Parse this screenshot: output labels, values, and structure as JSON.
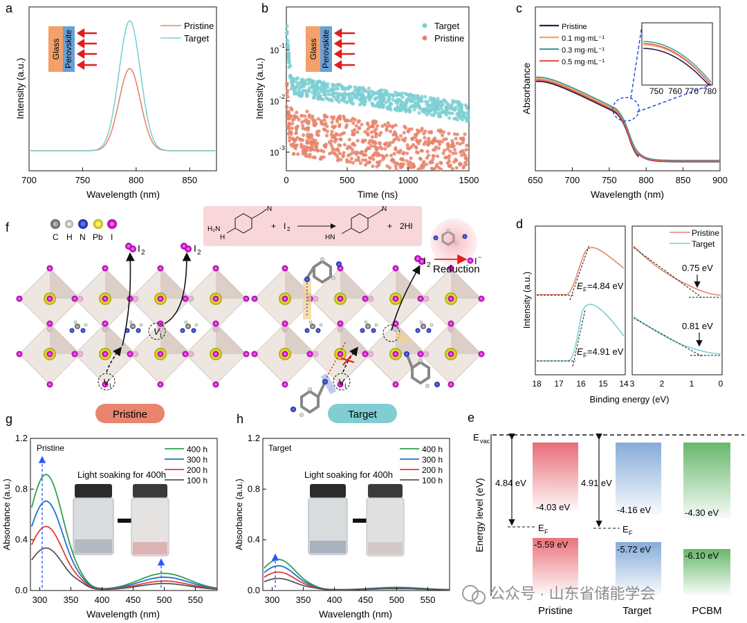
{
  "panels": {
    "a": {
      "letter": "a",
      "xlabel": "Wavelength (nm)",
      "ylabel": "Intensity (a.u.)",
      "xticks": [
        "700",
        "750",
        "800",
        "850"
      ],
      "legend": [
        "Pristine",
        "Target"
      ],
      "inset": {
        "glass": "Glass",
        "perovskite": "Perovskite"
      }
    },
    "b": {
      "letter": "b",
      "xlabel": "Time (ns)",
      "ylabel": "Intensity (a.u.)",
      "xticks": [
        "0",
        "500",
        "1000",
        "1500"
      ],
      "yticks": [
        "10",
        "10",
        "10"
      ],
      "yexp": [
        "-1",
        "-2",
        "-3"
      ],
      "legend": [
        "Target",
        "Pristine"
      ],
      "inset": {
        "glass": "Glass",
        "perovskite": "Perovskite"
      }
    },
    "c": {
      "letter": "c",
      "xlabel": "Wavelength (nm)",
      "ylabel": "Absorbance",
      "xticks": [
        "650",
        "700",
        "750",
        "800",
        "850",
        "900"
      ],
      "legend": [
        "Pristine",
        "0.1 mg·mL⁻¹",
        "0.3 mg·mL⁻¹",
        "0.5 mg·mL⁻¹"
      ],
      "inset_xticks": [
        "750",
        "760",
        "770",
        "780"
      ]
    },
    "d": {
      "letter": "d",
      "ylabel": "Intensity (a.u.)",
      "xlabel": "Binding energy (eV)",
      "xticks_left": [
        "18",
        "17",
        "16",
        "15",
        "14"
      ],
      "xticks_right": [
        "3",
        "2",
        "1",
        "0"
      ],
      "legend": [
        "Pristine",
        "Target"
      ],
      "ef_pristine": "=4.84 eV",
      "ef_target": "=4.91 eV",
      "ef_symbol": "E",
      "ef_sub": "F",
      "vbm_pristine": "0.75 eV",
      "vbm_target": "0.81 eV"
    },
    "e": {
      "letter": "e",
      "ylabel": "Energy level (eV)",
      "evac": "E",
      "evac_sub": "vac",
      "wf_pristine": "4.84 eV",
      "wf_target": "4.91 eV",
      "ef_label": "E",
      "ef_sub": "F",
      "columns": [
        {
          "name": "Pristine",
          "cb": "-4.03 eV",
          "vb": "-5.59 eV",
          "color": "#e8646f"
        },
        {
          "name": "Target",
          "cb": "-4.16 eV",
          "vb": "-5.72 eV",
          "color": "#7fa7d6"
        },
        {
          "name": "PCBM",
          "cb": "-4.30 eV",
          "vb": "-6.10 eV",
          "color": "#5fb463"
        }
      ]
    },
    "f": {
      "letter": "f",
      "atom_labels": [
        "C",
        "H",
        "N",
        "Pb",
        "I"
      ],
      "atom_colors": [
        "#8a8a8a",
        "#dcdcdc",
        "#2233cc",
        "#e6e02a",
        "#d81fd6"
      ],
      "i2": "I",
      "i2_sub": "2",
      "iminus": "I",
      "iminus_sup": "−",
      "reduction": "Reduction",
      "vacancy": "V",
      "vacancy_sub": "I",
      "reaction": {
        "plus1": "+",
        "i2": "I",
        "i2_sub": "2",
        "plus2": "+",
        "hi": "2HI",
        "nh_top": "H",
        "nh_n": "N",
        "cn_n": "N",
        "diazo": "N",
        "h2n": "H₂N",
        "nnh": "HN"
      },
      "pill_pristine": "Pristine",
      "pill_target": "Target"
    },
    "g": {
      "letter": "g",
      "tag": "Pristine",
      "xlabel": "Wavelength (nm)",
      "ylabel": "Absorbance (a.u.)",
      "xticks": [
        "300",
        "350",
        "400",
        "450",
        "500",
        "550"
      ],
      "yticks": [
        "0.0",
        "0.4",
        "0.8",
        "1.2"
      ],
      "legend": [
        "400 h",
        "300 h",
        "200 h",
        "100 h"
      ],
      "photo_caption": "Light soaking for 400h"
    },
    "h": {
      "letter": "h",
      "tag": "Target",
      "xlabel": "Wavelength (nm)",
      "ylabel": "Absorbance (a.u.)",
      "xticks": [
        "300",
        "350",
        "400",
        "450",
        "500",
        "550"
      ],
      "yticks": [
        "0.0",
        "0.4",
        "0.8",
        "1.2"
      ],
      "legend": [
        "400 h",
        "300 h",
        "200 h",
        "100 h"
      ],
      "photo_caption": "Light soaking for 400h"
    }
  },
  "watermark": "公众号 · 山东省储能学会",
  "colors": {
    "pristine": "#e8836a",
    "target": "#7ccfd2",
    "c_pristine": "#2b1a4a",
    "c01": "#f2a65a",
    "c03": "#3f9f9a",
    "c05": "#e8564a",
    "h400": "#2e9e4f",
    "h300": "#1f6fd1",
    "h200": "#e23b32",
    "h100": "#555555"
  },
  "chart_data": [
    {
      "type": "line",
      "title": "",
      "xlabel": "Wavelength (nm)",
      "ylabel": "Intensity (a.u.)",
      "xlim": [
        700,
        875
      ],
      "ylim": [
        0,
        1.05
      ],
      "series": [
        {
          "name": "Pristine",
          "peak": 794,
          "sigma": 10,
          "height": 0.6
        },
        {
          "name": "Target",
          "peak": 794,
          "sigma": 10,
          "height": 0.95
        }
      ]
    },
    {
      "type": "scatter",
      "xlabel": "Time (ns)",
      "ylabel": "Intensity (a.u.)",
      "xlim": [
        0,
        1500
      ],
      "ylim_log": [
        0.0004,
        0.4
      ],
      "series": [
        {
          "name": "Target",
          "start": 0.3,
          "plateau": 0.02,
          "end": 0.006
        },
        {
          "name": "Pristine",
          "start": 0.01,
          "plateau": 0.0025,
          "end": 0.0008
        }
      ]
    },
    {
      "type": "line",
      "xlabel": "Wavelength (nm)",
      "ylabel": "Absorbance",
      "xlim": [
        650,
        900
      ],
      "edge_nm": 770,
      "series": [
        {
          "name": "Pristine"
        },
        {
          "name": "0.1 mg·mL⁻¹"
        },
        {
          "name": "0.3 mg·mL⁻¹"
        },
        {
          "name": "0.5 mg·mL⁻¹"
        }
      ]
    },
    {
      "type": "line",
      "xlabel": "Wavelength (nm)",
      "ylabel": "Absorbance (a.u.)",
      "xlim": [
        285,
        585
      ],
      "ylim": [
        0,
        1.2
      ],
      "title": "Pristine",
      "series": [
        {
          "name": "400 h",
          "p310": 0.91,
          "p500": 0.13
        },
        {
          "name": "300 h",
          "p310": 0.7,
          "p500": 0.1
        },
        {
          "name": "200 h",
          "p310": 0.5,
          "p500": 0.07
        },
        {
          "name": "100 h",
          "p310": 0.33,
          "p500": 0.05
        }
      ]
    },
    {
      "type": "line",
      "xlabel": "Wavelength (nm)",
      "ylabel": "Absorbance (a.u.)",
      "xlim": [
        285,
        585
      ],
      "ylim": [
        0,
        1.2
      ],
      "title": "Target",
      "series": [
        {
          "name": "400 h",
          "p310": 0.24,
          "p500": 0.02
        },
        {
          "name": "300 h",
          "p310": 0.19,
          "p500": 0.015
        },
        {
          "name": "200 h",
          "p310": 0.14,
          "p500": 0.01
        },
        {
          "name": "100 h",
          "p310": 0.09,
          "p500": 0.01
        }
      ]
    }
  ]
}
